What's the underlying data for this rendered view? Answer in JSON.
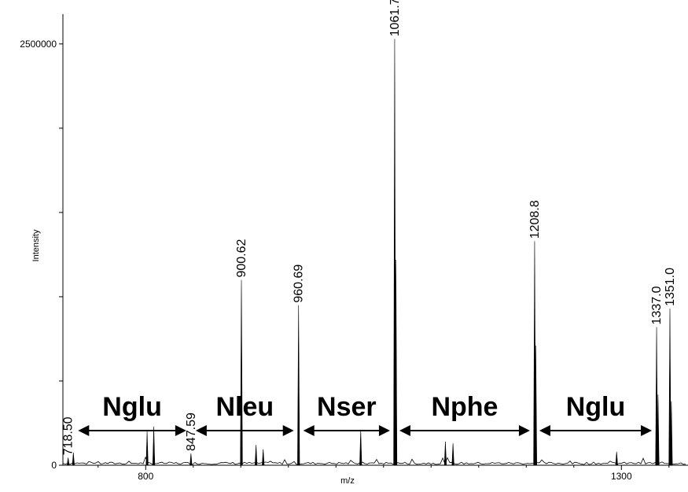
{
  "chart_data": {
    "type": "line",
    "title": "",
    "xlabel": "m/z",
    "ylabel": "Intensity",
    "xlim": [
      713,
      1370
    ],
    "ylim": [
      0,
      2700000
    ],
    "x_ticks": [
      800,
      1300
    ],
    "x_tick_labels": [
      "800",
      "1300"
    ],
    "y_ticks": [
      0,
      500000,
      1000000,
      1500000,
      2000000,
      2500000
    ],
    "y_tick_labels": [
      "0",
      "",
      "",
      "",
      "",
      "2500000"
    ],
    "grid": false,
    "peaks": [
      {
        "x": 718.5,
        "y": 45000,
        "label": "718.50"
      },
      {
        "x": 724.0,
        "y": 75000,
        "label": ""
      },
      {
        "x": 801.5,
        "y": 200000,
        "label": ""
      },
      {
        "x": 808.5,
        "y": 230000,
        "label": ""
      },
      {
        "x": 847.59,
        "y": 70000,
        "label": "847.59"
      },
      {
        "x": 900.62,
        "y": 1100000,
        "label": "900.62"
      },
      {
        "x": 916.0,
        "y": 120000,
        "label": ""
      },
      {
        "x": 923.5,
        "y": 95000,
        "label": ""
      },
      {
        "x": 960.69,
        "y": 950000,
        "label": "960.69"
      },
      {
        "x": 1026.0,
        "y": 210000,
        "label": ""
      },
      {
        "x": 1061.7,
        "y": 2530000,
        "label": "1061.7"
      },
      {
        "x": 1063.0,
        "y": 1220000,
        "label": ""
      },
      {
        "x": 1115.0,
        "y": 140000,
        "label": ""
      },
      {
        "x": 1123.0,
        "y": 130000,
        "label": ""
      },
      {
        "x": 1208.8,
        "y": 1330000,
        "label": "1208.8"
      },
      {
        "x": 1210.0,
        "y": 710000,
        "label": ""
      },
      {
        "x": 1295.0,
        "y": 80000,
        "label": ""
      },
      {
        "x": 1337.0,
        "y": 820000,
        "label": "1337.0"
      },
      {
        "x": 1338.5,
        "y": 420000,
        "label": ""
      },
      {
        "x": 1351.0,
        "y": 930000,
        "label": "1351.0"
      },
      {
        "x": 1352.5,
        "y": 380000,
        "label": ""
      }
    ],
    "annotations": [
      {
        "text": "Nglu",
        "from": 724,
        "to": 847.59
      },
      {
        "text": "Nleu",
        "from": 847.59,
        "to": 960.69
      },
      {
        "text": "Nser",
        "from": 960.69,
        "to": 1061.7
      },
      {
        "text": "Nphe",
        "from": 1061.7,
        "to": 1208.8
      },
      {
        "text": "Nglu",
        "from": 1208.8,
        "to": 1337.0
      }
    ]
  }
}
